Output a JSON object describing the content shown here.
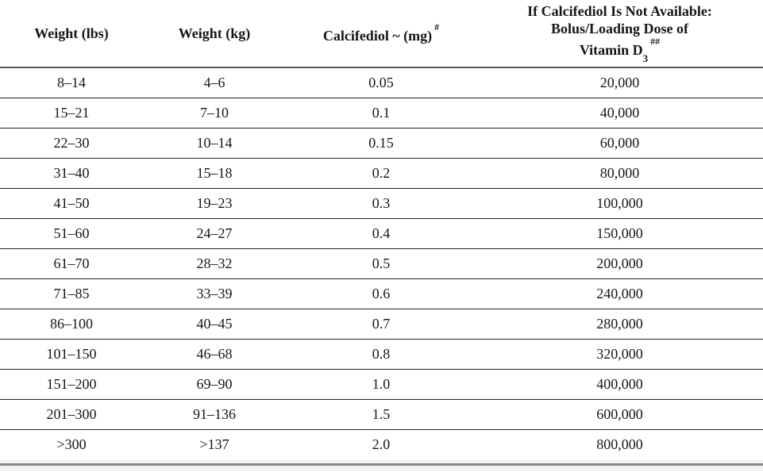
{
  "table": {
    "columns": [
      {
        "label": "Weight (lbs)"
      },
      {
        "label": "Weight (kg)"
      },
      {
        "label": "Calcifediol ~ (mg)",
        "sup": "#"
      },
      {
        "line1": "If Calcifediol Is Not Available:",
        "line2": "Bolus/Loading Dose of",
        "line3_base": "Vitamin D",
        "line3_sub": "3",
        "line3_sup": "##"
      }
    ],
    "rows": [
      [
        "8–14",
        "4–6",
        "0.05",
        "20,000"
      ],
      [
        "15–21",
        "7–10",
        "0.1",
        "40,000"
      ],
      [
        "22–30",
        "10–14",
        "0.15",
        "60,000"
      ],
      [
        "31–40",
        "15–18",
        "0.2",
        "80,000"
      ],
      [
        "41–50",
        "19–23",
        "0.3",
        "100,000"
      ],
      [
        "51–60",
        "24–27",
        "0.4",
        "150,000"
      ],
      [
        "61–70",
        "28–32",
        "0.5",
        "200,000"
      ],
      [
        "71–85",
        "33–39",
        "0.6",
        "240,000"
      ],
      [
        "86–100",
        "40–45",
        "0.7",
        "280,000"
      ],
      [
        "101–150",
        "46–68",
        "0.8",
        "320,000"
      ],
      [
        "151–200",
        "69–90",
        "1.0",
        "400,000"
      ],
      [
        "201–300",
        "91–136",
        "1.5",
        "600,000"
      ],
      [
        ">300",
        ">137",
        "2.0",
        "800,000"
      ]
    ]
  },
  "colors": {
    "text": "#161616",
    "row_rule": "#262626",
    "header_rule": "#5a5a5a",
    "bottom_band": "#f1f1f1",
    "bottom_rule": "#8a8a8a",
    "background": "#ffffff"
  }
}
